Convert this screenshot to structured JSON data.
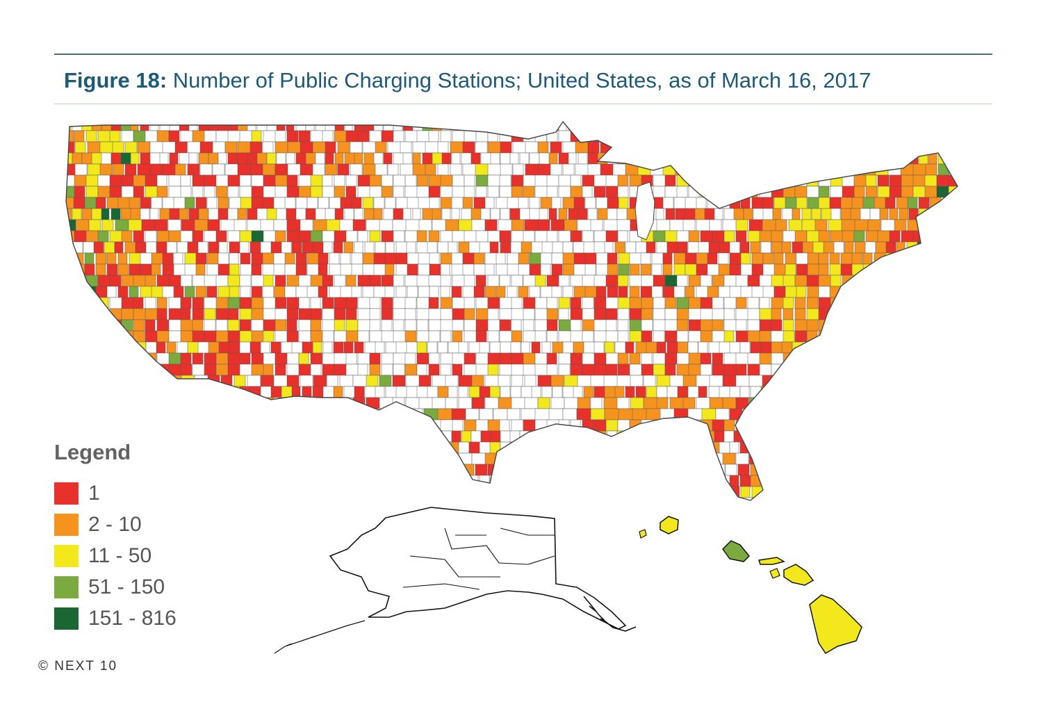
{
  "figure": {
    "label": "Figure 18:",
    "title": "Number of Public Charging Stations; United States, as of March 16, 2017"
  },
  "legend": {
    "title": "Legend",
    "items": [
      {
        "label": "1",
        "color": "#e8312a"
      },
      {
        "label": "2 - 10",
        "color": "#f6921e"
      },
      {
        "label": "11 - 50",
        "color": "#f2e81c"
      },
      {
        "label": "51 - 150",
        "color": "#7bab3f"
      },
      {
        "label": "151 - 816",
        "color": "#1b6734"
      }
    ]
  },
  "copyright": "© NEXT 10",
  "map": {
    "regions": [
      "contiguous-us",
      "alaska",
      "hawaii"
    ],
    "hawaii_class": "11 - 50",
    "oahu_class": "51 - 150",
    "alaska_class": "none",
    "no_station_color": "#ffffff",
    "border_color": "#5a5a5a"
  }
}
